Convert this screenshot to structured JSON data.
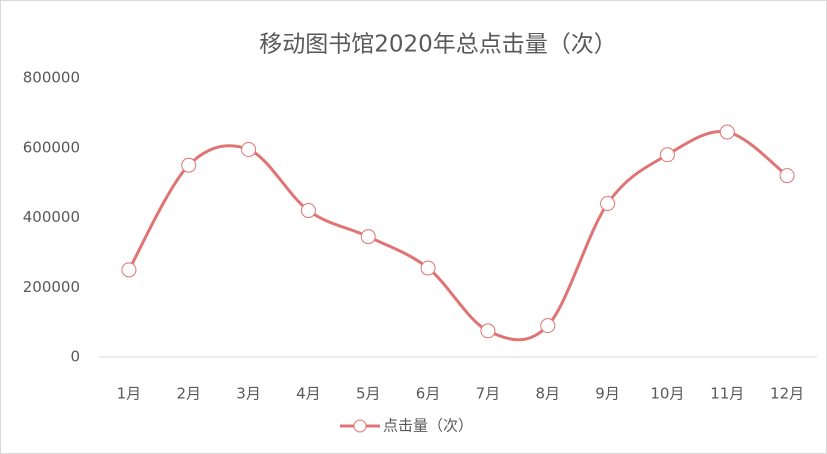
{
  "chart_data": {
    "type": "line",
    "title": "移动图书馆2020年总点击量（次）",
    "categories": [
      "1月",
      "2月",
      "3月",
      "4月",
      "5月",
      "6月",
      "7月",
      "8月",
      "9月",
      "10月",
      "11月",
      "12月"
    ],
    "series": [
      {
        "name": "点击量（次）",
        "color": "#e07474",
        "values": [
          250000,
          550000,
          595000,
          420000,
          345000,
          255000,
          75000,
          90000,
          440000,
          580000,
          645000,
          520000
        ]
      }
    ],
    "ylim": [
      0,
      800000
    ],
    "yticks": [
      0,
      200000,
      400000,
      600000,
      800000
    ],
    "smooth": true,
    "legend": "bottom"
  }
}
